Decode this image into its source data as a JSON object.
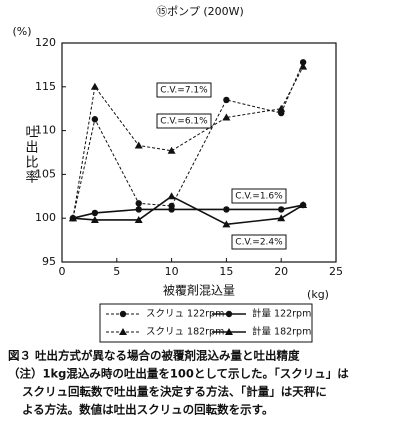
{
  "chart_data": {
    "type": "line",
    "title": "⑮ポンプ (200W)",
    "xlabel": "被覆剤混込量",
    "xunit": "(kg)",
    "ylabel": "吐出比率",
    "yunit": "(%)",
    "xlim": [
      0,
      25
    ],
    "xticks": [
      0,
      5,
      10,
      15,
      20,
      25
    ],
    "ylim": [
      95,
      120
    ],
    "yticks": [
      95,
      100,
      105,
      110,
      115,
      120
    ],
    "grid": false,
    "x": [
      1,
      3,
      7,
      10,
      15,
      20,
      22
    ],
    "series": [
      {
        "name": "スクリュ 122rpm",
        "color": "#111111",
        "dash": true,
        "marker": "circle",
        "values": [
          100,
          111.3,
          101.7,
          101.4,
          113.5,
          112,
          117.8
        ]
      },
      {
        "name": "計量 122rpm",
        "color": "#111111",
        "dash": false,
        "marker": "circle",
        "values": [
          100,
          100.6,
          101,
          101,
          101,
          101,
          101.5
        ]
      },
      {
        "name": "スクリュ 182rpm",
        "color": "#111111",
        "dash": true,
        "marker": "triangle",
        "values": [
          100,
          115,
          108.3,
          107.7,
          111.5,
          112.5,
          117.3
        ]
      },
      {
        "name": "計量 182rpm",
        "color": "#111111",
        "dash": false,
        "marker": "triangle",
        "values": [
          100,
          99.8,
          99.8,
          102.5,
          99.3,
          100,
          101.5
        ]
      }
    ],
    "annotations": [
      "C.V.=7.1%",
      "C.V.=6.1%",
      "C.V.=1.6%",
      "C.V.=2.4%"
    ]
  },
  "caption": [
    "図３ 吐出方式が異なる場合の被覆剤混込み量と吐出精度",
    "（注）1kg混込み時の吐出量を100として示した。「スクリュ」は",
    "スクリュ回転数で吐出量を決定する方法、「計量」は天秤に",
    "よる方法。数値は吐出スクリュの回転数を示す。"
  ]
}
